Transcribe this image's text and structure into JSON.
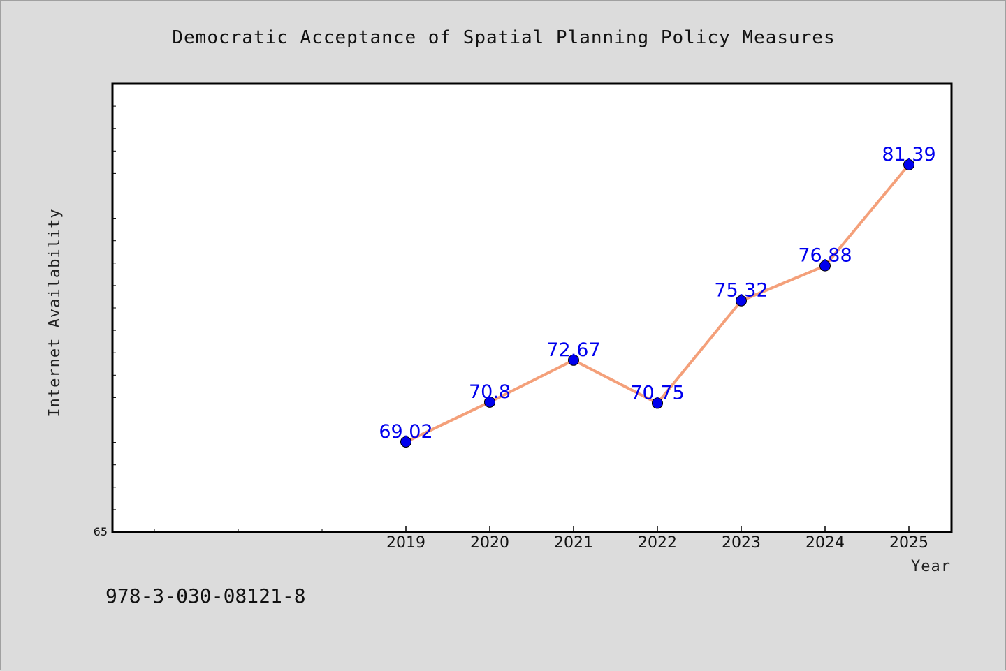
{
  "chart_data": {
    "type": "line",
    "title": "Democratic Acceptance of Spatial Planning Policy Measures",
    "xlabel": "Year",
    "ylabel": "Internet Availability",
    "x": [
      "2019",
      "2020",
      "2021",
      "2022",
      "2023",
      "2024",
      "2025"
    ],
    "values": [
      69.02,
      70.8,
      72.67,
      70.75,
      75.32,
      76.88,
      81.39
    ],
    "data_labels": [
      "69.02",
      "70.8",
      "72.67",
      "70.75",
      "75.32",
      "76.88",
      "81.39"
    ],
    "ylim": [
      65,
      85
    ],
    "y_tick_labels": [
      "65"
    ],
    "grid": false,
    "legend": "none",
    "colors": {
      "line": "#f4a07a",
      "marker": "#0000ee",
      "data_label": "#0000ee",
      "background": "#dcdcdc",
      "plot_background": "#ffffff"
    }
  },
  "footer": {
    "isbn": "978-3-030-08121-8"
  }
}
